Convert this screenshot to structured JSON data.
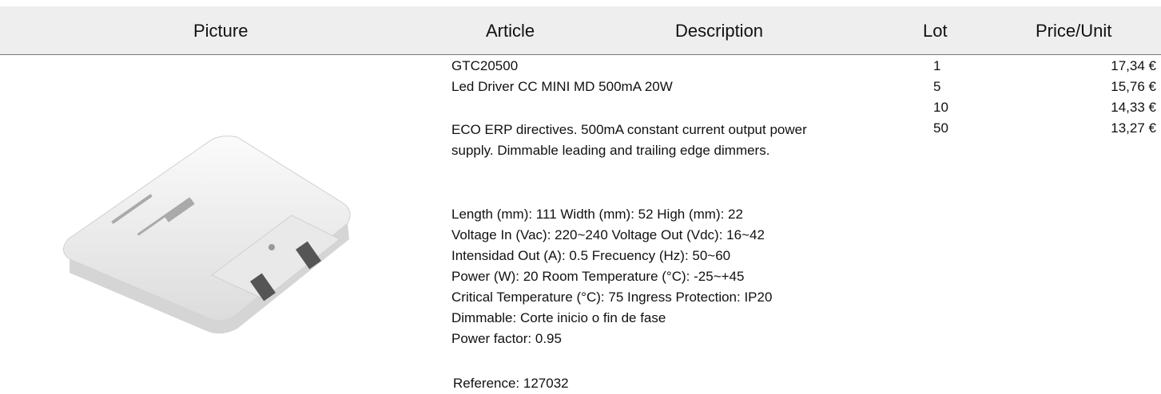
{
  "header": {
    "picture": "Picture",
    "article": "Article",
    "description": "Description",
    "lot": "Lot",
    "price": "Price/Unit"
  },
  "product": {
    "code": "GTC20500",
    "name": "Led Driver CC MINI MD 500mA 20W",
    "description": "ECO ERP directives. 500mA constant current output power supply. Dimmable leading and trailing edge dimmers.",
    "specs": [
      "Length (mm): 111 Width (mm): 52 High (mm): 22",
      "Voltage In (Vac): 220~240 Voltage Out (Vdc): 16~42",
      "Intensidad Out (A): 0.5 Frecuency (Hz): 50~60",
      "Power (W): 20 Room Temperature (°C): -25~+45",
      "Critical Temperature (°C): 75 Ingress Protection: IP20",
      "Dimmable: Corte inicio o fin de fase",
      "Power factor: 0.95"
    ],
    "reference": "Reference: 127032"
  },
  "prices": [
    [
      "1",
      "17,34 €"
    ],
    [
      "5",
      "15,76 €"
    ],
    [
      "10",
      "14,33 €"
    ],
    [
      "50",
      "13,27 €"
    ]
  ]
}
